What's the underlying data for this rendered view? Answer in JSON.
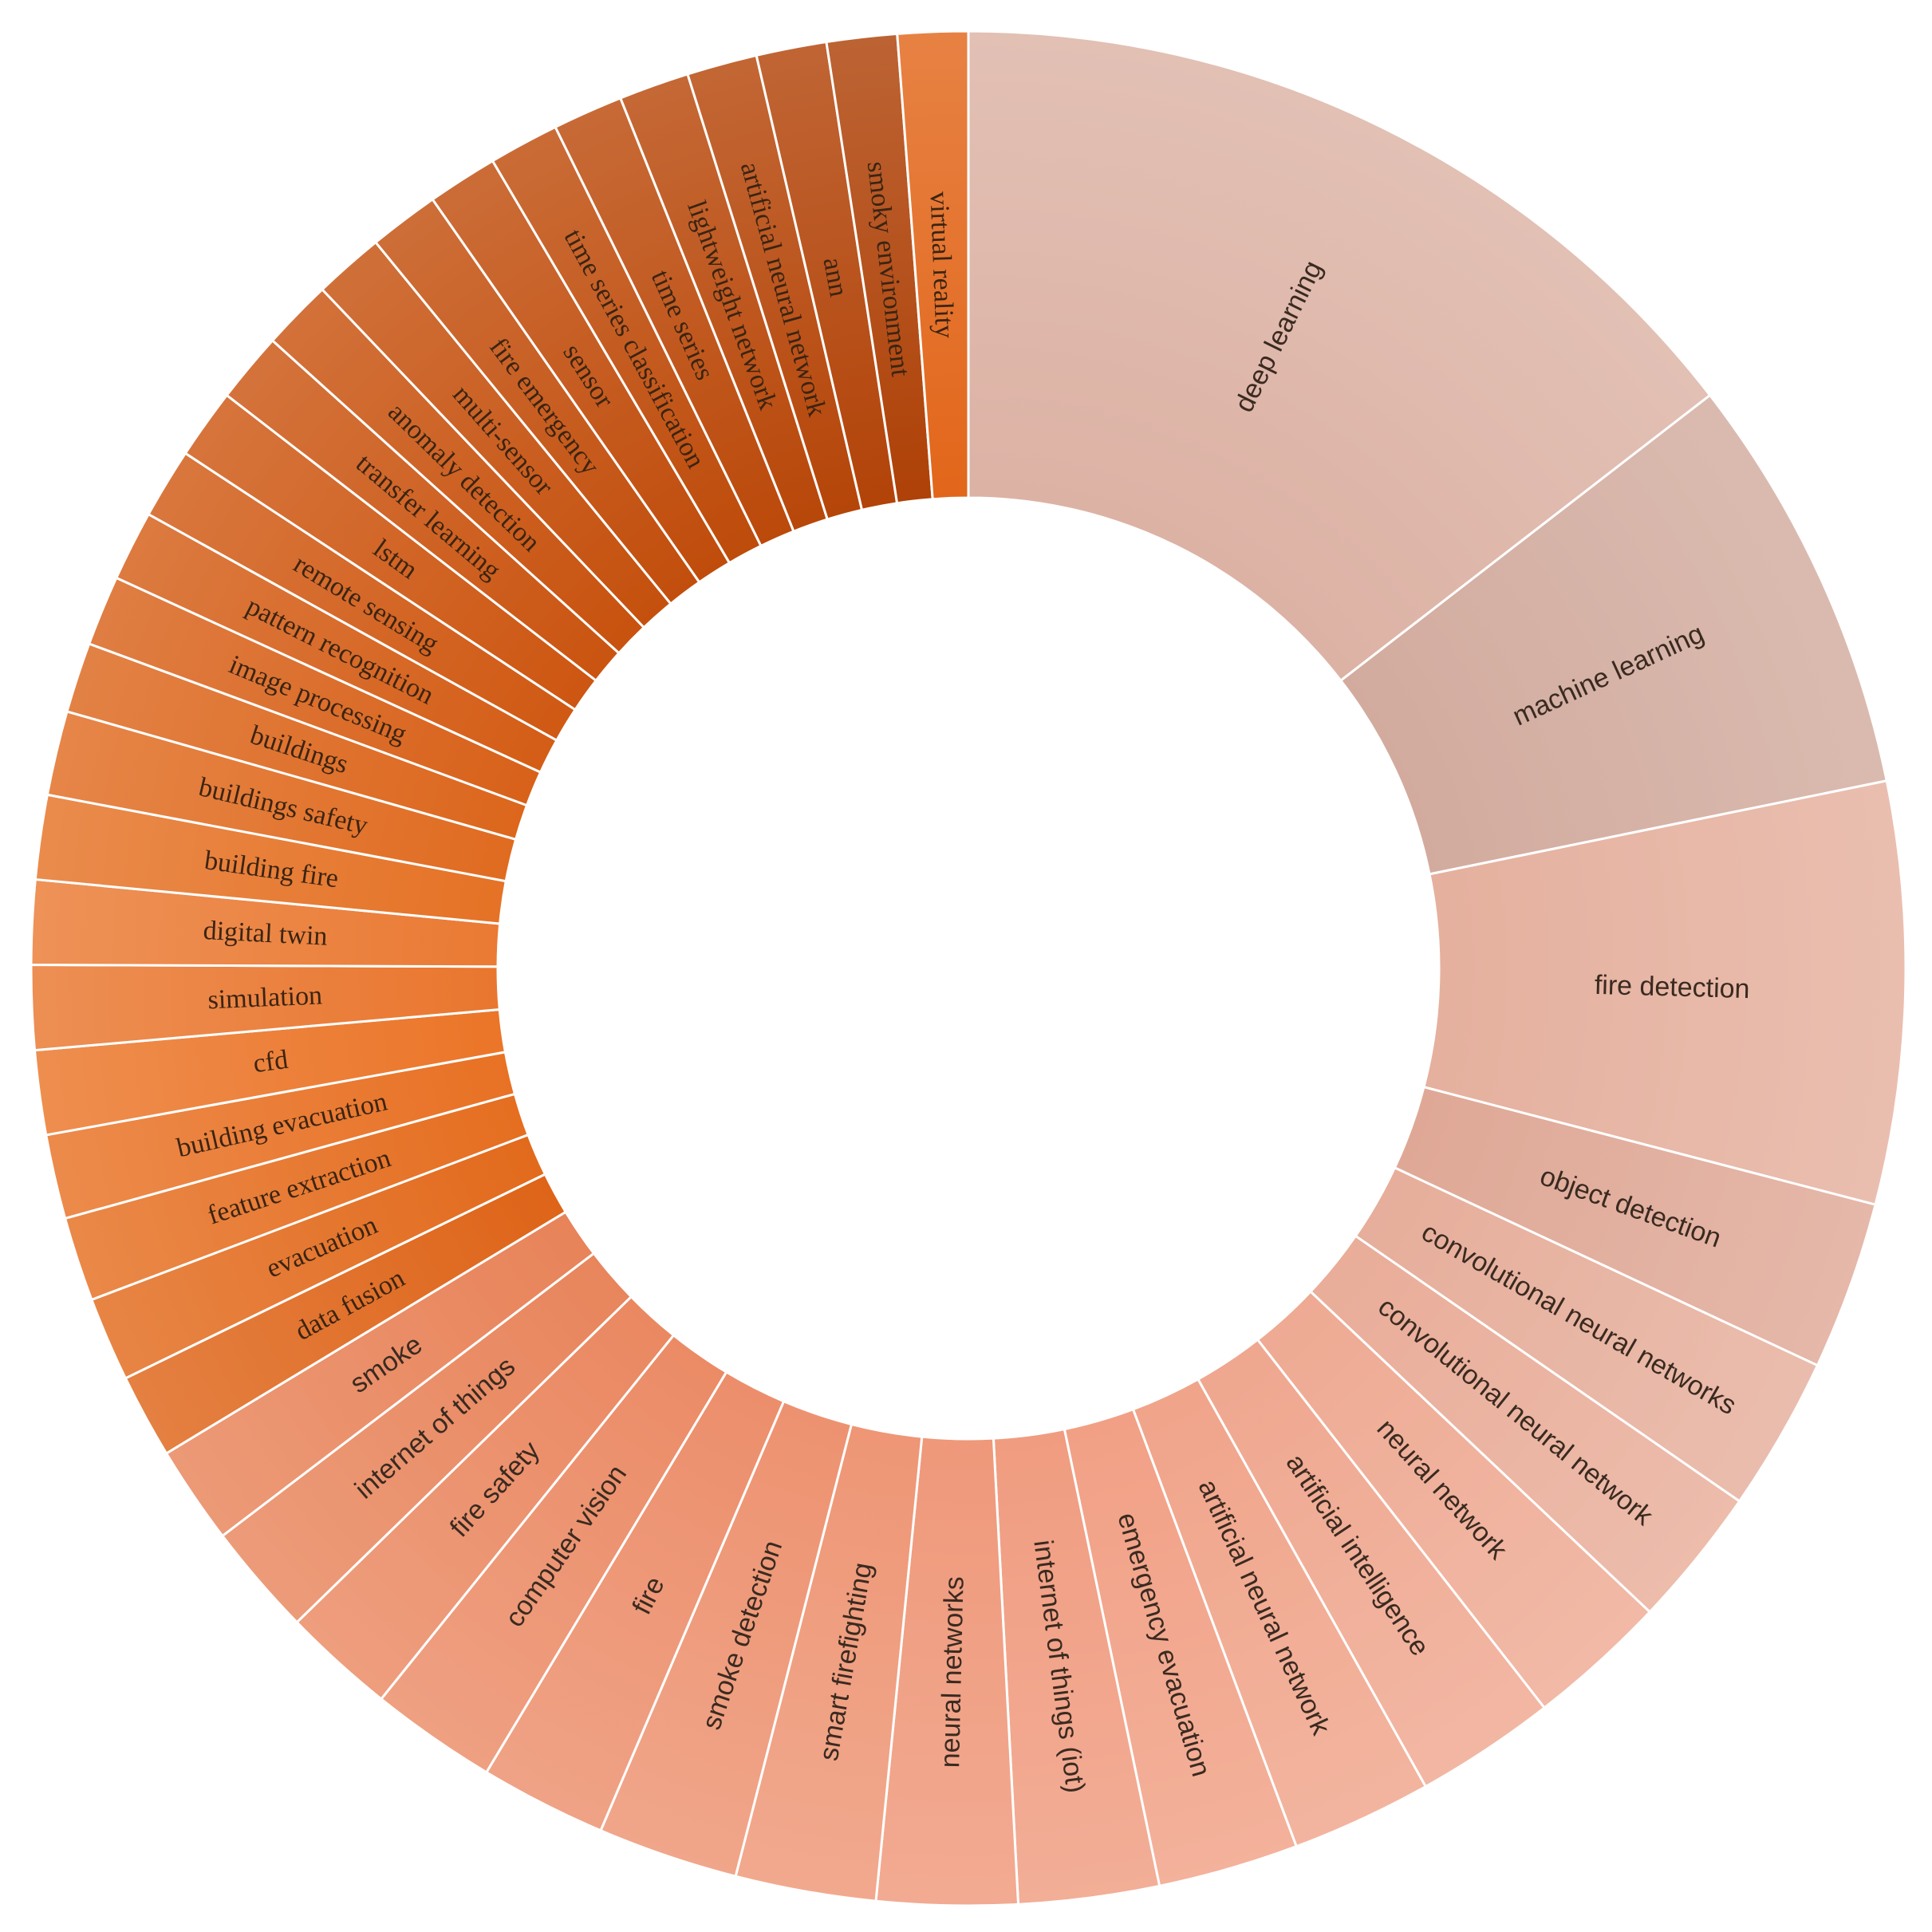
{
  "chart_data": {
    "type": "donut",
    "start_angle_deg": 0,
    "direction": "clockwise",
    "slices": [
      {
        "label": "deep learning",
        "value": 30,
        "color": "#dcb2a4"
      },
      {
        "label": "machine learning",
        "value": 15,
        "color": "#d2ab9e"
      },
      {
        "label": "fire detection",
        "value": 15,
        "color": "#e5b09e"
      },
      {
        "label": "object detection",
        "value": 6,
        "color": "#dfa896"
      },
      {
        "label": "convolutional neural networks",
        "value": 5.5,
        "color": "#e6ae9b"
      },
      {
        "label": "convolutional neural network",
        "value": 5,
        "color": "#e9ad99"
      },
      {
        "label": "neural network",
        "value": 5,
        "color": "#eeaa93"
      },
      {
        "label": "artificial intelligence",
        "value": 5,
        "color": "#efa78f"
      },
      {
        "label": "artificial neural network",
        "value": 5,
        "color": "#f0a48a"
      },
      {
        "label": "emergency evacuation",
        "value": 5,
        "color": "#f1a085"
      },
      {
        "label": "internet of things (iot)",
        "value": 5,
        "color": "#f09c80"
      },
      {
        "label": "neural networks",
        "value": 5,
        "color": "#ef987a"
      },
      {
        "label": "smart firefighting",
        "value": 5,
        "color": "#ee9675"
      },
      {
        "label": "smoke detection",
        "value": 5,
        "color": "#ed9270"
      },
      {
        "label": "fire",
        "value": 4.5,
        "color": "#ec8e6b"
      },
      {
        "label": "computer vision",
        "value": 4.5,
        "color": "#eb8b66"
      },
      {
        "label": "fire safety",
        "value": 4,
        "color": "#ea8861"
      },
      {
        "label": "internet of things",
        "value": 4,
        "color": "#e8855c"
      },
      {
        "label": "smoke",
        "value": 3.5,
        "color": "#e88359"
      },
      {
        "label": "data fusion",
        "value": 3,
        "color": "#de6418"
      },
      {
        "label": "evacuation",
        "value": 3,
        "color": "#e26a1c"
      },
      {
        "label": "feature extraction",
        "value": 3,
        "color": "#e56e20"
      },
      {
        "label": "building evacuation",
        "value": 3,
        "color": "#e87124"
      },
      {
        "label": "cfd",
        "value": 3,
        "color": "#eb7528"
      },
      {
        "label": "simulation",
        "value": 3,
        "color": "#e9762e"
      },
      {
        "label": "digital twin",
        "value": 3,
        "color": "#ea7a33"
      },
      {
        "label": "building fire",
        "value": 3,
        "color": "#e57225"
      },
      {
        "label": "buildings safety",
        "value": 3,
        "color": "#e06b20"
      },
      {
        "label": "buildings",
        "value": 2.5,
        "color": "#dc661c"
      },
      {
        "label": "image processing",
        "value": 2.5,
        "color": "#d86119"
      },
      {
        "label": "pattern recognition",
        "value": 2.5,
        "color": "#d45d16"
      },
      {
        "label": "remote sensing",
        "value": 2.5,
        "color": "#d05913"
      },
      {
        "label": "lstm",
        "value": 2.5,
        "color": "#cd5611"
      },
      {
        "label": "transfer learning",
        "value": 2.5,
        "color": "#ca5410"
      },
      {
        "label": "anomaly detection",
        "value": 2.5,
        "color": "#c8520e"
      },
      {
        "label": "multi-sensor",
        "value": 2.5,
        "color": "#c5500d"
      },
      {
        "label": "fire emergency",
        "value": 2.5,
        "color": "#c24e0c"
      },
      {
        "label": "sensor",
        "value": 2.5,
        "color": "#c04c0b"
      },
      {
        "label": "time series classification",
        "value": 2.5,
        "color": "#be4b0a"
      },
      {
        "label": "time series",
        "value": 2.5,
        "color": "#bb490a"
      },
      {
        "label": "lightweight network",
        "value": 2.5,
        "color": "#b84709"
      },
      {
        "label": "artificial neural network",
        "value": 2.5,
        "color": "#b54508"
      },
      {
        "label": "ann",
        "value": 2.5,
        "color": "#b24308"
      },
      {
        "label": "smoky environment",
        "value": 2.5,
        "color": "#ae4107"
      },
      {
        "label": "virtual reality",
        "value": 2.5,
        "color": "#e2661a"
      }
    ]
  }
}
